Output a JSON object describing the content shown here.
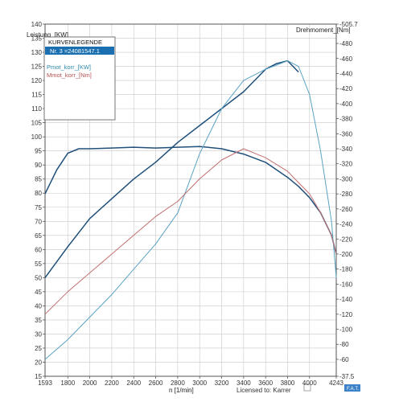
{
  "chart_data": {
    "type": "line",
    "xlabel": "n [1/min]",
    "ylabel_left": "Leistung_[KW]",
    "ylabel_right": "Drehmoment_[Nm]",
    "x_range": [
      1593,
      4243
    ],
    "x_ticks": [
      1593,
      1800,
      2000,
      2200,
      2400,
      2600,
      2800,
      3000,
      3200,
      3400,
      3600,
      3800,
      4000,
      4243
    ],
    "y_left_range": [
      15,
      140
    ],
    "y_left_ticks": [
      15,
      20,
      25,
      30,
      35,
      40,
      45,
      50,
      55,
      60,
      65,
      70,
      75,
      80,
      85,
      90,
      95,
      100,
      105,
      110,
      115,
      120,
      125,
      130,
      135,
      140
    ],
    "y_right_range": [
      37.5,
      505.7
    ],
    "y_right_ticks": [
      37.5,
      60,
      80,
      100,
      120,
      140,
      160,
      180,
      200,
      220,
      240,
      260,
      280,
      300,
      320,
      340,
      360,
      380,
      400,
      420,
      440,
      460,
      480,
      505.7
    ],
    "grid": true,
    "legend": {
      "title": "KURVENLEGENDE",
      "selected": "Nr. 3 =24081547.1",
      "entries": [
        "Pmot_korr_[KW]",
        "Mmot_korr_[Nm]"
      ]
    },
    "series": [
      {
        "name": "Mmot_korr_[Nm]",
        "axis": "right",
        "color": "#1f4f7a",
        "x": [
          1593,
          1700,
          1800,
          1900,
          2000,
          2200,
          2400,
          2600,
          2800,
          3000,
          3200,
          3400,
          3600,
          3800,
          3900,
          4000,
          4100,
          4200,
          4243
        ],
        "y": [
          280,
          312,
          334,
          340,
          340,
          341,
          342,
          341,
          342,
          343,
          340,
          333,
          322,
          302,
          290,
          275,
          255,
          225,
          200
        ]
      },
      {
        "name": "Pmot_korr_[KW]",
        "axis": "left",
        "color": "#1f4f7a",
        "x": [
          1593,
          1800,
          2000,
          2200,
          2400,
          2600,
          2800,
          3000,
          3200,
          3400,
          3600,
          3700,
          3800,
          3900
        ],
        "y": [
          50,
          61,
          71,
          78,
          85,
          91,
          98,
          104,
          110,
          116,
          124,
          126,
          127,
          123
        ]
      },
      {
        "name": "Pmot_korr_[KW]",
        "axis": "left",
        "color": "#5aa3c4",
        "x": [
          1593,
          1800,
          2000,
          2200,
          2400,
          2600,
          2800,
          3000,
          3200,
          3400,
          3600,
          3800,
          3900,
          4000,
          4100,
          4200,
          4243
        ],
        "y": [
          21,
          28,
          36,
          44,
          53,
          62,
          73,
          94,
          110,
          120,
          124,
          127,
          125,
          115,
          95,
          70,
          50
        ]
      },
      {
        "name": "Mmot_korr_[Nm]",
        "axis": "right",
        "color": "#c27070",
        "x": [
          1593,
          1800,
          2000,
          2200,
          2400,
          2600,
          2800,
          3000,
          3200,
          3400,
          3600,
          3800,
          3900,
          4000,
          4100,
          4200,
          4243
        ],
        "y": [
          120,
          150,
          175,
          200,
          225,
          250,
          270,
          300,
          325,
          340,
          328,
          310,
          295,
          280,
          255,
          225,
          200
        ]
      }
    ]
  },
  "footer": {
    "license": "Licensed to: Karrer",
    "brand": "F.A.T."
  }
}
